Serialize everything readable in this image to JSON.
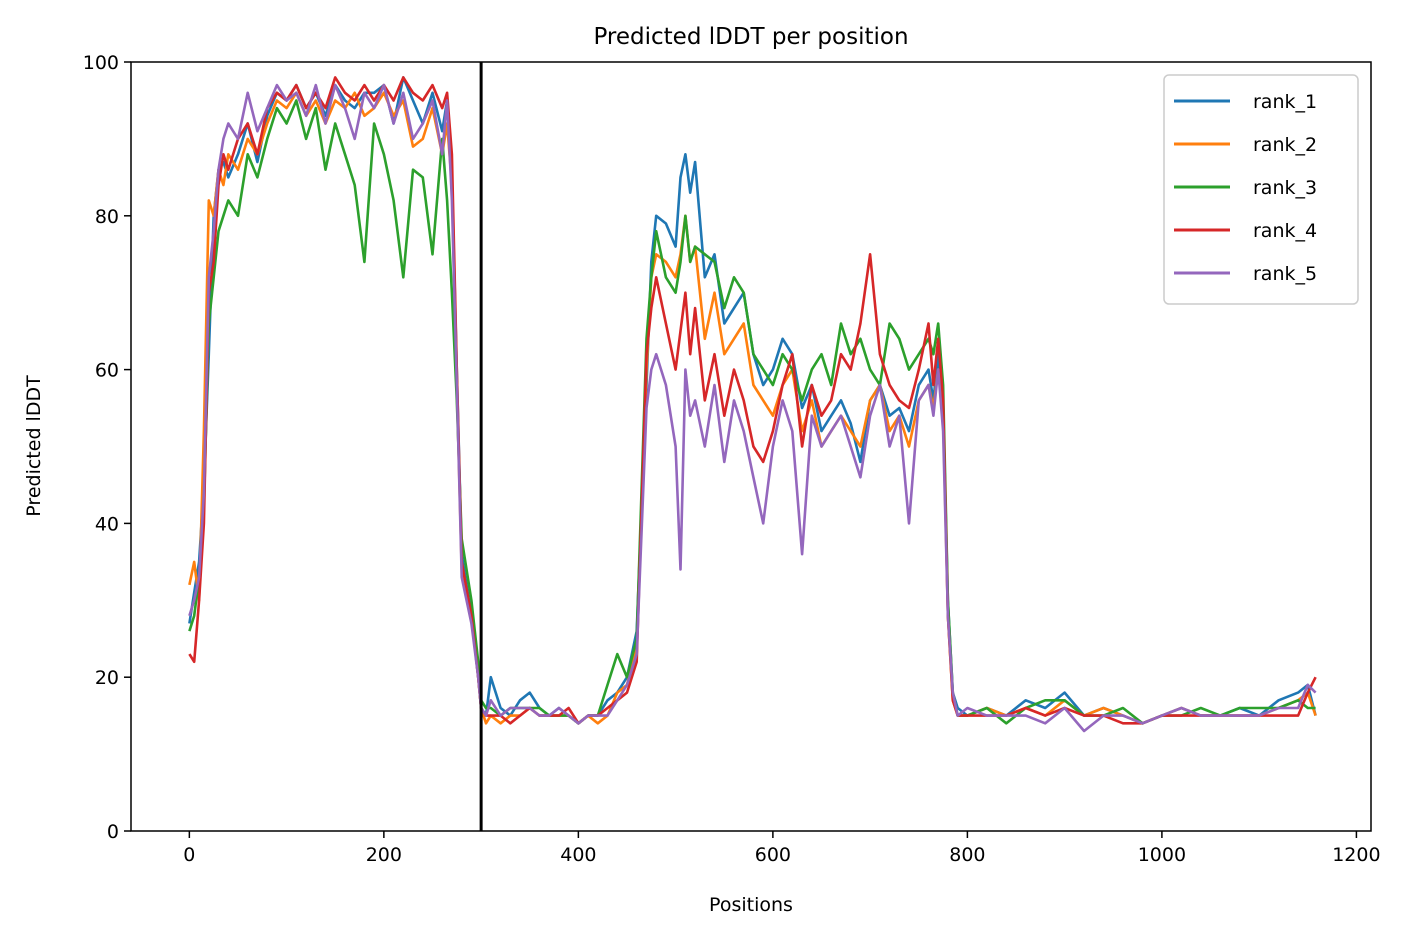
{
  "chart_data": {
    "type": "line",
    "title": "Predicted lDDT per position",
    "xlabel": "Positions",
    "ylabel": "Predicted lDDT",
    "xlim": [
      -60,
      1215
    ],
    "ylim": [
      0,
      100
    ],
    "xticks": [
      0,
      200,
      400,
      600,
      800,
      1000,
      1200
    ],
    "yticks": [
      0,
      20,
      40,
      60,
      80,
      100
    ],
    "grid": false,
    "legend_position": "top-right",
    "vline_x": 300,
    "vline_color": "#000000",
    "series": [
      {
        "name": "rank_1",
        "color": "#1f77b4",
        "x": [
          0,
          5,
          10,
          15,
          20,
          25,
          30,
          35,
          40,
          50,
          60,
          70,
          80,
          90,
          100,
          110,
          120,
          130,
          140,
          150,
          160,
          170,
          180,
          190,
          200,
          210,
          220,
          230,
          240,
          250,
          260,
          265,
          270,
          275,
          280,
          290,
          297,
          300,
          305,
          310,
          320,
          330,
          340,
          350,
          360,
          370,
          380,
          390,
          400,
          410,
          420,
          430,
          440,
          450,
          460,
          470,
          475,
          480,
          490,
          500,
          505,
          510,
          515,
          520,
          530,
          540,
          550,
          560,
          570,
          580,
          590,
          600,
          610,
          620,
          630,
          640,
          650,
          660,
          670,
          680,
          690,
          700,
          710,
          720,
          730,
          740,
          750,
          760,
          765,
          770,
          775,
          780,
          785,
          790,
          800,
          820,
          840,
          860,
          880,
          900,
          920,
          940,
          960,
          980,
          1000,
          1020,
          1040,
          1060,
          1080,
          1100,
          1120,
          1140,
          1150,
          1158
        ],
        "y": [
          27,
          31,
          35,
          45,
          62,
          80,
          86,
          87,
          85,
          88,
          92,
          87,
          93,
          96,
          95,
          97,
          94,
          96,
          93,
          97,
          95,
          94,
          96,
          96,
          97,
          92,
          98,
          95,
          92,
          96,
          91,
          95,
          85,
          60,
          36,
          28,
          20,
          16,
          15,
          20,
          16,
          15,
          17,
          18,
          16,
          15,
          16,
          15,
          14,
          15,
          15,
          17,
          18,
          20,
          26,
          58,
          74,
          80,
          79,
          76,
          85,
          88,
          83,
          87,
          72,
          75,
          66,
          68,
          70,
          62,
          58,
          60,
          64,
          62,
          55,
          58,
          52,
          54,
          56,
          53,
          48,
          56,
          58,
          54,
          55,
          52,
          58,
          60,
          56,
          62,
          55,
          30,
          18,
          16,
          15,
          16,
          15,
          17,
          16,
          18,
          15,
          16,
          15,
          14,
          15,
          16,
          15,
          15,
          16,
          15,
          17,
          18,
          19,
          15
        ]
      },
      {
        "name": "rank_2",
        "color": "#ff7f0e",
        "x": [
          0,
          5,
          10,
          15,
          20,
          25,
          30,
          35,
          40,
          50,
          60,
          70,
          80,
          90,
          100,
          110,
          120,
          130,
          140,
          150,
          160,
          170,
          180,
          190,
          200,
          210,
          220,
          230,
          240,
          250,
          260,
          265,
          270,
          275,
          280,
          290,
          297,
          300,
          305,
          310,
          320,
          330,
          340,
          350,
          360,
          370,
          380,
          390,
          400,
          410,
          420,
          430,
          440,
          450,
          460,
          470,
          475,
          480,
          490,
          500,
          505,
          510,
          515,
          520,
          530,
          540,
          550,
          560,
          570,
          580,
          590,
          600,
          610,
          620,
          630,
          640,
          650,
          660,
          670,
          680,
          690,
          700,
          710,
          720,
          730,
          740,
          750,
          760,
          765,
          770,
          775,
          780,
          785,
          790,
          800,
          820,
          840,
          860,
          880,
          900,
          920,
          940,
          960,
          980,
          1000,
          1020,
          1040,
          1060,
          1080,
          1100,
          1120,
          1140,
          1150,
          1158
        ],
        "y": [
          32,
          35,
          30,
          52,
          82,
          80,
          86,
          84,
          88,
          86,
          90,
          88,
          92,
          95,
          94,
          96,
          93,
          95,
          92,
          95,
          94,
          96,
          93,
          94,
          96,
          93,
          95,
          89,
          90,
          94,
          88,
          92,
          84,
          58,
          34,
          28,
          20,
          16,
          14,
          15,
          14,
          15,
          15,
          16,
          15,
          15,
          15,
          15,
          14,
          15,
          14,
          15,
          18,
          19,
          24,
          60,
          72,
          75,
          74,
          72,
          75,
          80,
          74,
          76,
          64,
          70,
          62,
          64,
          66,
          58,
          56,
          54,
          58,
          60,
          52,
          56,
          50,
          52,
          54,
          52,
          50,
          56,
          58,
          52,
          54,
          50,
          56,
          58,
          55,
          60,
          54,
          28,
          17,
          15,
          15,
          16,
          15,
          16,
          15,
          17,
          15,
          16,
          15,
          14,
          15,
          16,
          15,
          15,
          15,
          15,
          16,
          17,
          18,
          15
        ]
      },
      {
        "name": "rank_3",
        "color": "#2ca02c",
        "x": [
          0,
          5,
          10,
          15,
          20,
          25,
          30,
          35,
          40,
          50,
          60,
          70,
          80,
          90,
          100,
          110,
          120,
          130,
          140,
          150,
          160,
          170,
          180,
          190,
          200,
          210,
          220,
          230,
          240,
          250,
          260,
          265,
          270,
          275,
          280,
          290,
          297,
          300,
          305,
          310,
          320,
          330,
          340,
          350,
          360,
          370,
          380,
          390,
          400,
          410,
          420,
          430,
          440,
          450,
          460,
          470,
          475,
          480,
          490,
          500,
          505,
          510,
          515,
          520,
          530,
          540,
          550,
          560,
          570,
          580,
          590,
          600,
          610,
          620,
          630,
          640,
          650,
          660,
          670,
          680,
          690,
          700,
          710,
          720,
          730,
          740,
          750,
          760,
          765,
          770,
          775,
          780,
          785,
          790,
          800,
          820,
          840,
          860,
          880,
          900,
          920,
          940,
          960,
          980,
          1000,
          1020,
          1040,
          1060,
          1080,
          1100,
          1120,
          1140,
          1150,
          1158
        ],
        "y": [
          26,
          28,
          33,
          42,
          66,
          72,
          78,
          80,
          82,
          80,
          88,
          85,
          90,
          94,
          92,
          95,
          90,
          94,
          86,
          92,
          88,
          84,
          74,
          92,
          88,
          82,
          72,
          86,
          85,
          75,
          90,
          82,
          70,
          56,
          38,
          30,
          22,
          17,
          16,
          16,
          15,
          16,
          16,
          16,
          16,
          15,
          15,
          15,
          14,
          15,
          15,
          19,
          23,
          20,
          25,
          64,
          72,
          78,
          72,
          70,
          74,
          80,
          74,
          76,
          75,
          74,
          68,
          72,
          70,
          62,
          60,
          58,
          62,
          60,
          56,
          60,
          62,
          58,
          66,
          62,
          64,
          60,
          58,
          66,
          64,
          60,
          62,
          64,
          62,
          66,
          58,
          30,
          18,
          15,
          15,
          16,
          14,
          16,
          17,
          17,
          15,
          15,
          16,
          14,
          15,
          15,
          16,
          15,
          16,
          16,
          16,
          17,
          16,
          16
        ]
      },
      {
        "name": "rank_4",
        "color": "#d62728",
        "x": [
          0,
          5,
          10,
          15,
          20,
          25,
          30,
          35,
          40,
          50,
          60,
          70,
          80,
          90,
          100,
          110,
          120,
          130,
          140,
          150,
          160,
          170,
          180,
          190,
          200,
          210,
          220,
          230,
          240,
          250,
          260,
          265,
          270,
          275,
          280,
          290,
          297,
          300,
          305,
          310,
          320,
          330,
          340,
          350,
          360,
          370,
          380,
          390,
          400,
          410,
          420,
          430,
          440,
          450,
          460,
          470,
          475,
          480,
          490,
          500,
          505,
          510,
          515,
          520,
          530,
          540,
          550,
          560,
          570,
          580,
          590,
          600,
          610,
          620,
          630,
          640,
          650,
          660,
          670,
          680,
          690,
          700,
          710,
          720,
          730,
          740,
          750,
          760,
          765,
          770,
          775,
          780,
          785,
          790,
          800,
          820,
          840,
          860,
          880,
          900,
          920,
          940,
          960,
          980,
          1000,
          1020,
          1040,
          1060,
          1080,
          1100,
          1120,
          1140,
          1150,
          1158
        ],
        "y": [
          23,
          22,
          30,
          40,
          70,
          74,
          84,
          88,
          86,
          90,
          92,
          88,
          94,
          96,
          95,
          97,
          94,
          96,
          94,
          98,
          96,
          95,
          97,
          95,
          97,
          95,
          98,
          96,
          95,
          97,
          94,
          96,
          88,
          60,
          35,
          28,
          20,
          16,
          15,
          15,
          15,
          14,
          15,
          16,
          15,
          15,
          15,
          16,
          14,
          15,
          15,
          16,
          17,
          18,
          22,
          62,
          68,
          72,
          66,
          60,
          65,
          70,
          62,
          68,
          56,
          62,
          54,
          60,
          56,
          50,
          48,
          52,
          58,
          62,
          50,
          58,
          54,
          56,
          62,
          60,
          66,
          75,
          62,
          58,
          56,
          55,
          60,
          66,
          58,
          64,
          56,
          28,
          17,
          15,
          15,
          15,
          15,
          16,
          15,
          16,
          15,
          15,
          14,
          14,
          15,
          15,
          15,
          15,
          15,
          15,
          15,
          15,
          18,
          20
        ]
      },
      {
        "name": "rank_5",
        "color": "#9467bd",
        "x": [
          0,
          5,
          10,
          15,
          20,
          25,
          30,
          35,
          40,
          50,
          60,
          70,
          80,
          90,
          100,
          110,
          120,
          130,
          140,
          150,
          160,
          170,
          180,
          190,
          200,
          210,
          220,
          230,
          240,
          250,
          260,
          265,
          270,
          275,
          280,
          290,
          297,
          300,
          305,
          310,
          320,
          330,
          340,
          350,
          360,
          370,
          380,
          390,
          400,
          410,
          420,
          430,
          440,
          450,
          460,
          470,
          475,
          480,
          490,
          500,
          505,
          510,
          515,
          520,
          530,
          540,
          550,
          560,
          570,
          580,
          590,
          600,
          610,
          620,
          630,
          640,
          650,
          660,
          670,
          680,
          690,
          700,
          710,
          720,
          730,
          740,
          750,
          760,
          765,
          770,
          775,
          780,
          785,
          790,
          800,
          820,
          840,
          860,
          880,
          900,
          920,
          940,
          960,
          980,
          1000,
          1020,
          1040,
          1060,
          1080,
          1100,
          1120,
          1140,
          1150,
          1158
        ],
        "y": [
          28,
          30,
          33,
          44,
          72,
          78,
          86,
          90,
          92,
          90,
          96,
          91,
          94,
          97,
          95,
          96,
          93,
          97,
          92,
          97,
          94,
          90,
          96,
          94,
          97,
          92,
          96,
          90,
          92,
          95,
          88,
          95,
          82,
          58,
          33,
          27,
          20,
          16,
          15,
          17,
          15,
          16,
          16,
          16,
          15,
          15,
          16,
          15,
          14,
          15,
          15,
          15,
          17,
          19,
          23,
          55,
          60,
          62,
          58,
          50,
          34,
          60,
          54,
          56,
          50,
          58,
          48,
          56,
          52,
          46,
          40,
          50,
          56,
          52,
          36,
          54,
          50,
          52,
          54,
          50,
          46,
          54,
          58,
          50,
          54,
          40,
          56,
          58,
          54,
          60,
          52,
          28,
          18,
          15,
          16,
          15,
          15,
          15,
          14,
          16,
          13,
          15,
          15,
          14,
          15,
          16,
          15,
          15,
          15,
          15,
          16,
          16,
          19,
          18
        ]
      }
    ]
  }
}
